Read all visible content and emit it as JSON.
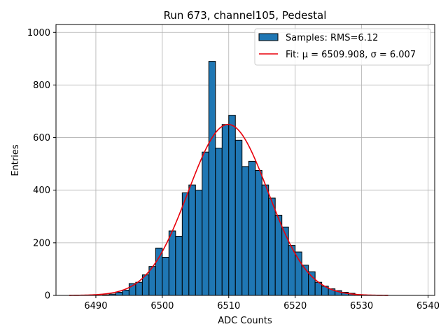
{
  "chart_data": {
    "type": "bar",
    "title": "Run 673, channel105, Pedestal",
    "xlabel": "ADC Counts",
    "ylabel": "Entries",
    "xlim": [
      6484,
      6541
    ],
    "ylim": [
      0,
      1030
    ],
    "xticks": [
      6490,
      6500,
      6510,
      6520,
      6530,
      6540
    ],
    "yticks": [
      0,
      200,
      400,
      600,
      800,
      1000
    ],
    "grid": true,
    "legend_position": "top-right",
    "bar_color": "#1f77b4",
    "fit_color": "#e8000b",
    "bins": {
      "left_edges": [
        6491,
        6492,
        6493,
        6494,
        6495,
        6496,
        6497,
        6498,
        6499,
        6500,
        6501,
        6502,
        6503,
        6504,
        6505,
        6506,
        6507,
        6508,
        6509,
        6510,
        6511,
        6512,
        6513,
        6514,
        6515,
        6516,
        6517,
        6518,
        6519,
        6520,
        6521,
        6522,
        6523,
        6524,
        6525,
        6526,
        6527,
        6528
      ],
      "width": 1,
      "counts": [
        2,
        5,
        12,
        20,
        45,
        50,
        78,
        110,
        180,
        145,
        245,
        225,
        390,
        420,
        400,
        545,
        890,
        560,
        650,
        685,
        590,
        490,
        510,
        475,
        420,
        370,
        305,
        260,
        190,
        165,
        115,
        90,
        50,
        35,
        25,
        18,
        12,
        8
      ]
    },
    "fit": {
      "mu": 6509.908,
      "sigma": 6.007,
      "amplitude": 650,
      "x_range": [
        6486,
        6534
      ]
    },
    "legend": [
      {
        "label": "Samples: RMS=6.12",
        "kind": "patch"
      },
      {
        "label": "Fit: μ = 6509.908, σ = 6.007",
        "kind": "line"
      }
    ]
  }
}
